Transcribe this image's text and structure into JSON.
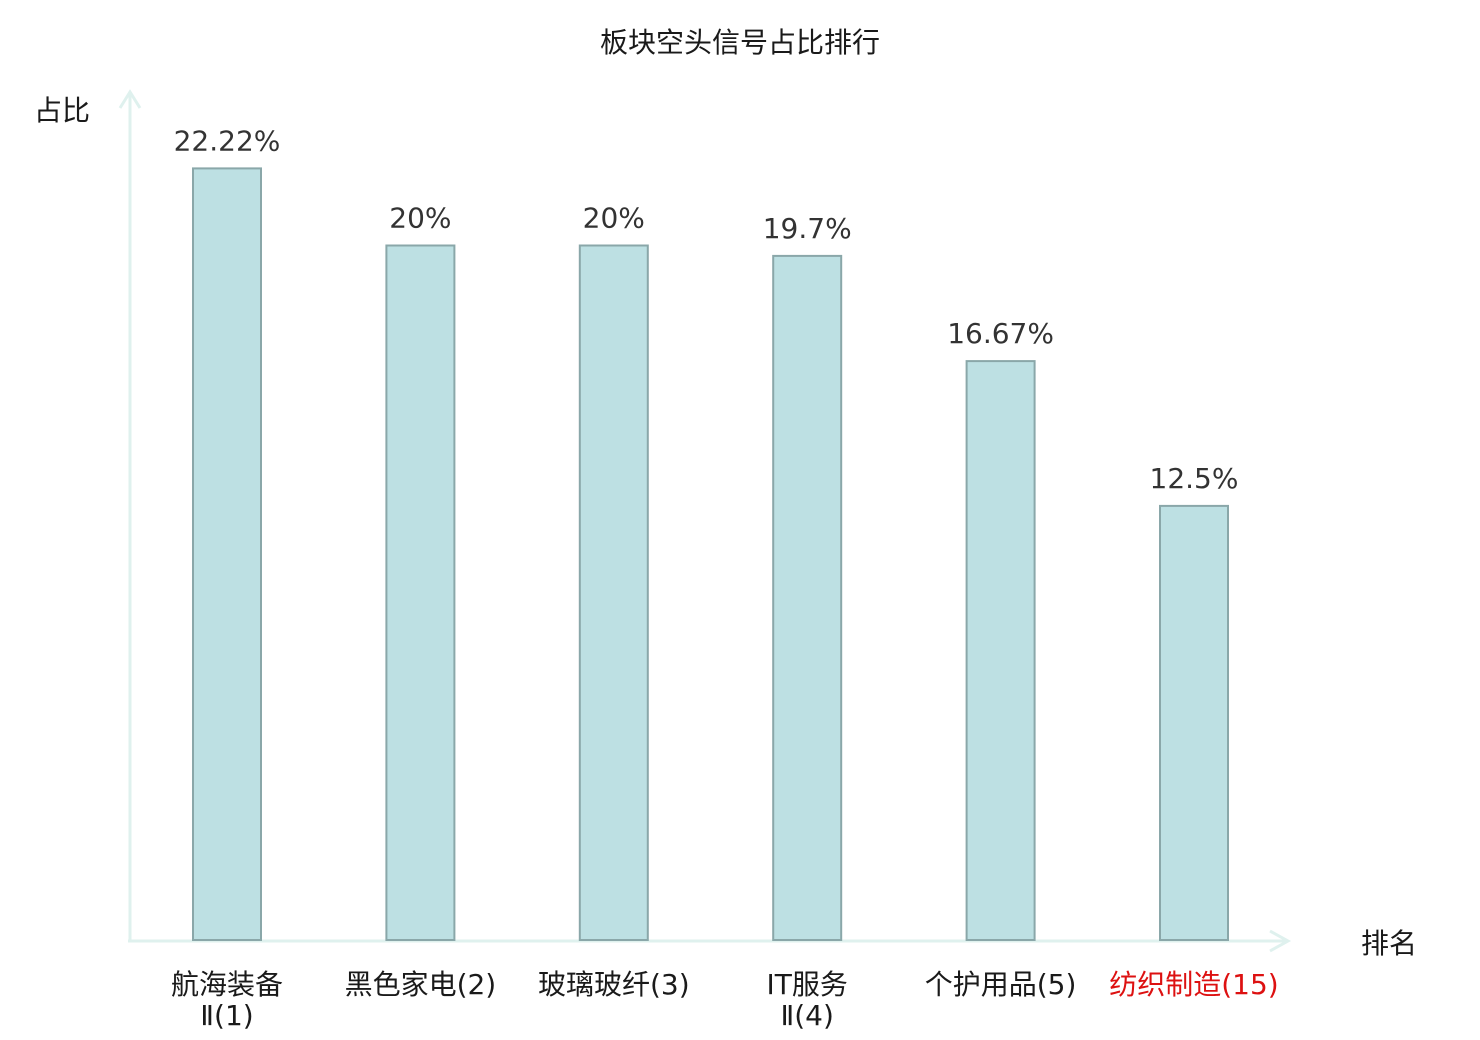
{
  "colors": {
    "bar_fill": "#bde0e3",
    "bar_stroke": "#8aa7a9",
    "axis": "#dff1ee",
    "text": "#1a1a1a",
    "value_text": "#333333",
    "category_normal": "#1a1a1a",
    "category_highlight": "#dd1111"
  },
  "chart_data": {
    "type": "bar",
    "title": "板块空头信号占比排行",
    "ylabel": "占比",
    "xlabel": "排名",
    "ylim": [
      0,
      25.4
    ],
    "grid": false,
    "categories": [
      {
        "name": "航海装备",
        "suffix": "Ⅱ",
        "rank": "(1)",
        "highlight": false
      },
      {
        "name": "黑色家电",
        "suffix": "",
        "rank": "(2)",
        "highlight": false
      },
      {
        "name": "玻璃玻纤",
        "suffix": "",
        "rank": "(3)",
        "highlight": false
      },
      {
        "name": "IT服务",
        "suffix": "Ⅱ",
        "rank": "(4)",
        "highlight": false
      },
      {
        "name": "个护用品",
        "suffix": "",
        "rank": "(5)",
        "highlight": false
      },
      {
        "name": "纺织制造",
        "suffix": "",
        "rank": "(15)",
        "highlight": true
      }
    ],
    "values": [
      22.22,
      20,
      20,
      19.7,
      16.67,
      12.5
    ],
    "value_labels": [
      "22.22%",
      "20%",
      "20%",
      "19.7%",
      "16.67%",
      "12.5%"
    ]
  }
}
